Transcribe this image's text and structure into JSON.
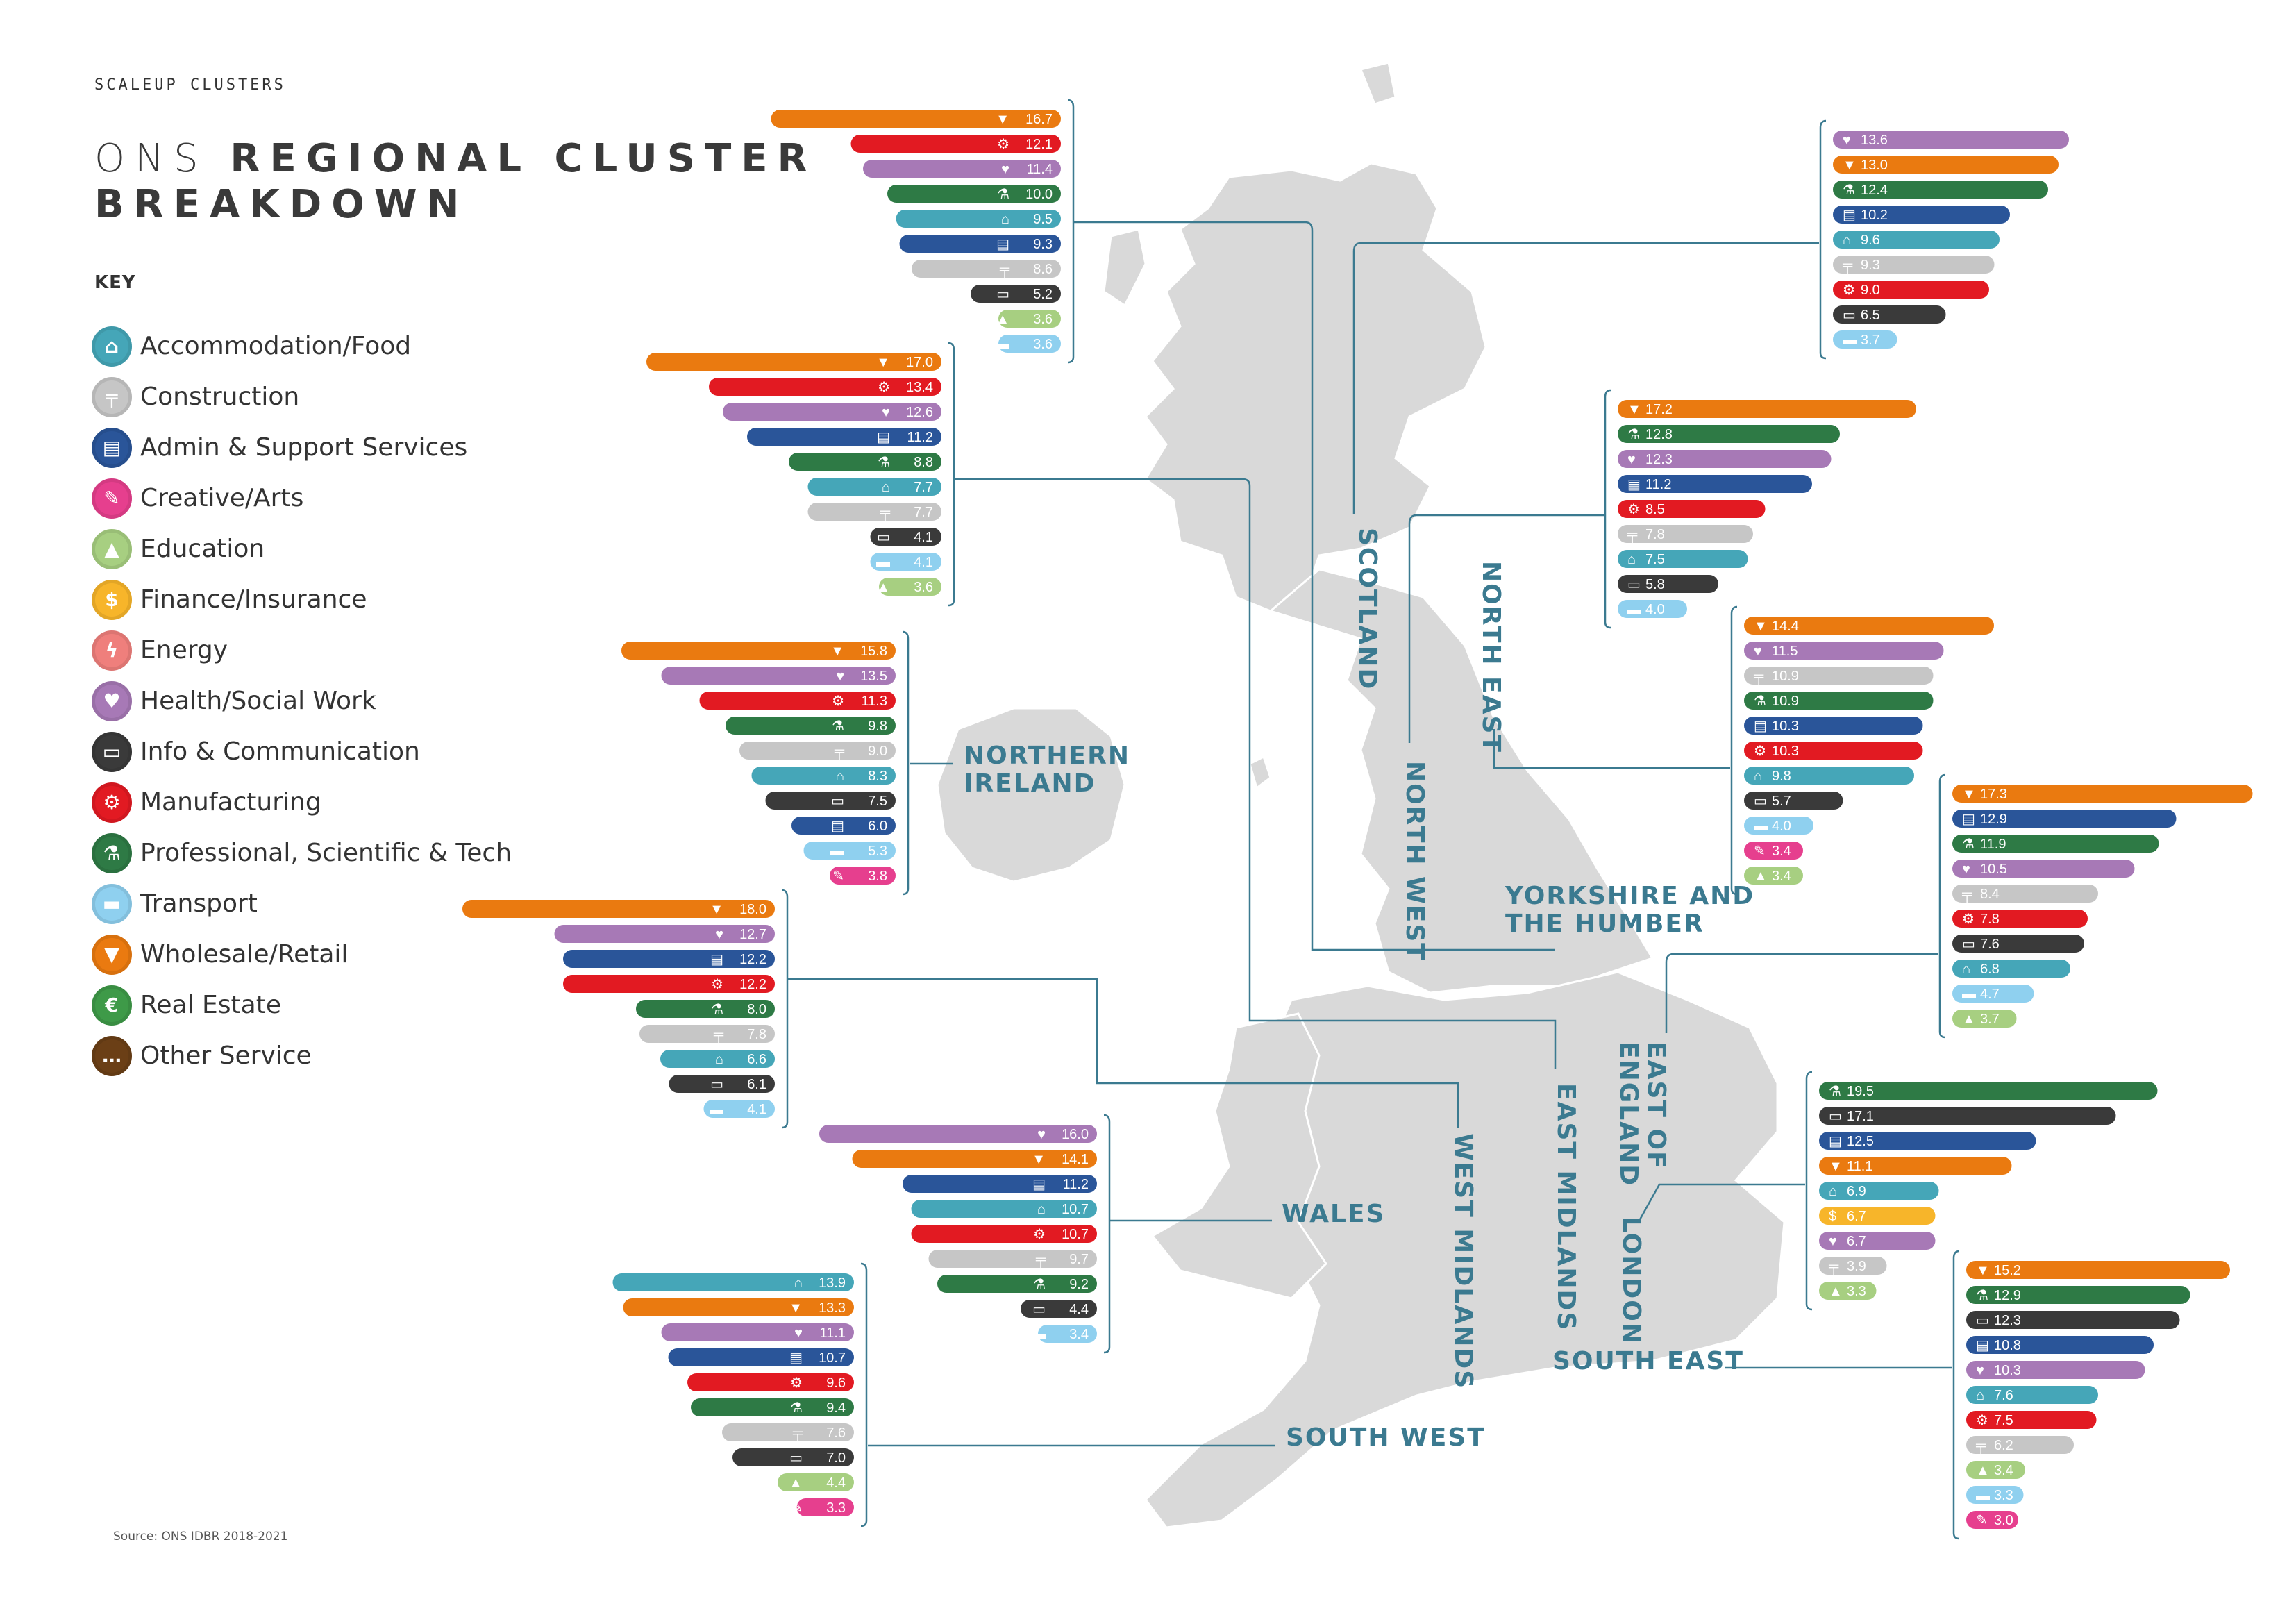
{
  "header": {
    "kicker": "SCALEUP CLUSTERS",
    "title_light": "ONS",
    "title_bold_1": "REGIONAL CLUSTER",
    "title_bold_2": "BREAKDOWN"
  },
  "key": {
    "heading": "KEY",
    "items": [
      {
        "label": "Accommodation/Food",
        "color": "#45a6b8",
        "icon": "bed-icon",
        "glyph": "⌂"
      },
      {
        "label": "Construction",
        "color": "#c6c6c6",
        "icon": "crane-icon",
        "glyph": "╤"
      },
      {
        "label": "Admin & Support Services",
        "color": "#2a5599",
        "icon": "folder-icon",
        "glyph": "▤"
      },
      {
        "label": "Creative/Arts",
        "color": "#e63f8e",
        "icon": "lightbulb-icon",
        "glyph": "✎"
      },
      {
        "label": "Education",
        "color": "#a7cf81",
        "icon": "mortarboard-icon",
        "glyph": "▲"
      },
      {
        "label": "Finance/Insurance",
        "color": "#f7b52a",
        "icon": "coins-icon",
        "glyph": "$"
      },
      {
        "label": "Energy",
        "color": "#ef7f7c",
        "icon": "lightning-icon",
        "glyph": "ϟ"
      },
      {
        "label": "Health/Social Work",
        "color": "#a779b6",
        "icon": "heart-hand-icon",
        "glyph": "♥"
      },
      {
        "label": "Info & Communication",
        "color": "#3a3a3a",
        "icon": "chat-icon",
        "glyph": "▭"
      },
      {
        "label": "Manufacturing",
        "color": "#e21a22",
        "icon": "factory-icon",
        "glyph": "⚙"
      },
      {
        "label": "Professional, Scientific & Tech",
        "color": "#2e7a45",
        "icon": "microscope-icon",
        "glyph": "⚗"
      },
      {
        "label": "Transport",
        "color": "#8fd0ef",
        "icon": "bus-icon",
        "glyph": "▬"
      },
      {
        "label": "Wholesale/Retail",
        "color": "#ea7a10",
        "icon": "basket-icon",
        "glyph": "▼"
      },
      {
        "label": "Real Estate",
        "color": "#3e9a48",
        "icon": "house-icon",
        "glyph": "€"
      },
      {
        "label": "Other Service",
        "color": "#6b3f16",
        "icon": "ellipsis-icon",
        "glyph": "…"
      }
    ]
  },
  "source": "Source: ONS IDBR 2018-2021",
  "colors": {
    "Accommodation/Food": "#45a6b8",
    "Construction": "#c6c6c6",
    "Admin & Support Services": "#2a5599",
    "Creative/Arts": "#e63f8e",
    "Education": "#a7cf81",
    "Finance/Insurance": "#f7b52a",
    "Energy": "#ef7f7c",
    "Health/Social Work": "#a779b6",
    "Info & Communication": "#3a3a3a",
    "Manufacturing": "#e21a22",
    "Professional, Scientific & Tech": "#2e7a45",
    "Transport": "#8fd0ef",
    "Wholesale/Retail": "#ea7a10",
    "Real Estate": "#3e9a48",
    "Other Service": "#6b3f16"
  },
  "region_labels": [
    {
      "text": "SCOTLAND"
    },
    {
      "text": "NORTH EAST"
    },
    {
      "text": "NORTH WEST"
    },
    {
      "text": "NORTHERN IRELAND"
    },
    {
      "text": "YORKSHIRE AND THE HUMBER"
    },
    {
      "text": "EAST OF ENGLAND"
    },
    {
      "text": "EAST MIDLANDS"
    },
    {
      "text": "WEST MIDLANDS"
    },
    {
      "text": "LONDON"
    },
    {
      "text": "WALES"
    },
    {
      "text": "SOUTH EAST"
    },
    {
      "text": "SOUTH WEST"
    }
  ],
  "chart_data": {
    "type": "bar",
    "title": "ONS REGIONAL CLUSTER BREAKDOWN",
    "orientation": "horizontal",
    "regions": [
      {
        "name": "",
        "series": [
          {
            "name": "Wholesale/Retail",
            "value": 16.7
          },
          {
            "name": "Manufacturing",
            "value": 12.1
          },
          {
            "name": "Health/Social Work",
            "value": 11.4
          },
          {
            "name": "Professional, Scientific & Tech",
            "value": 10.0
          },
          {
            "name": "Accommodation/Food",
            "value": 9.5
          },
          {
            "name": "Admin & Support Services",
            "value": 9.3
          },
          {
            "name": "Construction",
            "value": 8.6
          },
          {
            "name": "Info & Communication",
            "value": 5.2
          },
          {
            "name": "Education",
            "value": 3.6
          },
          {
            "name": "Transport",
            "value": 3.6
          }
        ]
      },
      {
        "name": "",
        "series": [
          {
            "name": "Wholesale/Retail",
            "value": 17.0
          },
          {
            "name": "Manufacturing",
            "value": 13.4
          },
          {
            "name": "Health/Social Work",
            "value": 12.6
          },
          {
            "name": "Admin & Support Services",
            "value": 11.2
          },
          {
            "name": "Professional, Scientific & Tech",
            "value": 8.8
          },
          {
            "name": "Accommodation/Food",
            "value": 7.7
          },
          {
            "name": "Construction",
            "value": 7.7
          },
          {
            "name": "Info & Communication",
            "value": 4.1
          },
          {
            "name": "Transport",
            "value": 4.1
          },
          {
            "name": "Education",
            "value": 3.6
          }
        ]
      },
      {
        "name": "NORTHERN IRELAND",
        "series": [
          {
            "name": "Wholesale/Retail",
            "value": 15.8
          },
          {
            "name": "Health/Social Work",
            "value": 13.5
          },
          {
            "name": "Manufacturing",
            "value": 11.3
          },
          {
            "name": "Professional, Scientific & Tech",
            "value": 9.8
          },
          {
            "name": "Construction",
            "value": 9.0
          },
          {
            "name": "Accommodation/Food",
            "value": 8.3
          },
          {
            "name": "Info & Communication",
            "value": 7.5
          },
          {
            "name": "Admin & Support Services",
            "value": 6.0
          },
          {
            "name": "Transport",
            "value": 5.3
          },
          {
            "name": "Creative/Arts",
            "value": 3.8
          }
        ]
      },
      {
        "name": "",
        "series": [
          {
            "name": "Wholesale/Retail",
            "value": 18.0
          },
          {
            "name": "Health/Social Work",
            "value": 12.7
          },
          {
            "name": "Admin & Support Services",
            "value": 12.2
          },
          {
            "name": "Manufacturing",
            "value": 12.2
          },
          {
            "name": "Professional, Scientific & Tech",
            "value": 8.0
          },
          {
            "name": "Construction",
            "value": 7.8
          },
          {
            "name": "Accommodation/Food",
            "value": 6.6
          },
          {
            "name": "Info & Communication",
            "value": 6.1
          },
          {
            "name": "Transport",
            "value": 4.1
          }
        ]
      },
      {
        "name": "WALES",
        "series": [
          {
            "name": "Health/Social Work",
            "value": 16.0
          },
          {
            "name": "Wholesale/Retail",
            "value": 14.1
          },
          {
            "name": "Admin & Support Services",
            "value": 11.2
          },
          {
            "name": "Accommodation/Food",
            "value": 10.7
          },
          {
            "name": "Manufacturing",
            "value": 10.7
          },
          {
            "name": "Construction",
            "value": 9.7
          },
          {
            "name": "Professional, Scientific & Tech",
            "value": 9.2
          },
          {
            "name": "Info & Communication",
            "value": 4.4
          },
          {
            "name": "Transport",
            "value": 3.4
          }
        ]
      },
      {
        "name": "SOUTH WEST",
        "series": [
          {
            "name": "Accommodation/Food",
            "value": 13.9
          },
          {
            "name": "Wholesale/Retail",
            "value": 13.3
          },
          {
            "name": "Health/Social Work",
            "value": 11.1
          },
          {
            "name": "Admin & Support Services",
            "value": 10.7
          },
          {
            "name": "Manufacturing",
            "value": 9.6
          },
          {
            "name": "Professional, Scientific & Tech",
            "value": 9.4
          },
          {
            "name": "Construction",
            "value": 7.6
          },
          {
            "name": "Info & Communication",
            "value": 7.0
          },
          {
            "name": "Education",
            "value": 4.4
          },
          {
            "name": "Creative/Arts",
            "value": 3.3
          }
        ]
      },
      {
        "name": "SCOTLAND",
        "series": [
          {
            "name": "Health/Social Work",
            "value": 13.6
          },
          {
            "name": "Wholesale/Retail",
            "value": 13.0
          },
          {
            "name": "Professional, Scientific & Tech",
            "value": 12.4
          },
          {
            "name": "Admin & Support Services",
            "value": 10.2
          },
          {
            "name": "Accommodation/Food",
            "value": 9.6
          },
          {
            "name": "Construction",
            "value": 9.3
          },
          {
            "name": "Manufacturing",
            "value": 9.0
          },
          {
            "name": "Info & Communication",
            "value": 6.5
          },
          {
            "name": "Transport",
            "value": 3.7
          }
        ]
      },
      {
        "name": "NORTH WEST",
        "series": [
          {
            "name": "Wholesale/Retail",
            "value": 17.2
          },
          {
            "name": "Professional, Scientific & Tech",
            "value": 12.8
          },
          {
            "name": "Health/Social Work",
            "value": 12.3
          },
          {
            "name": "Admin & Support Services",
            "value": 11.2
          },
          {
            "name": "Manufacturing",
            "value": 8.5
          },
          {
            "name": "Construction",
            "value": 7.8
          },
          {
            "name": "Accommodation/Food",
            "value": 7.5
          },
          {
            "name": "Info & Communication",
            "value": 5.8
          },
          {
            "name": "Transport",
            "value": 4.0
          }
        ]
      },
      {
        "name": "NORTH EAST",
        "series": [
          {
            "name": "Wholesale/Retail",
            "value": 14.4
          },
          {
            "name": "Health/Social Work",
            "value": 11.5
          },
          {
            "name": "Construction",
            "value": 10.9
          },
          {
            "name": "Professional, Scientific & Tech",
            "value": 10.9
          },
          {
            "name": "Admin & Support Services",
            "value": 10.3
          },
          {
            "name": "Manufacturing",
            "value": 10.3
          },
          {
            "name": "Accommodation/Food",
            "value": 9.8
          },
          {
            "name": "Info & Communication",
            "value": 5.7
          },
          {
            "name": "Transport",
            "value": 4.0
          },
          {
            "name": "Creative/Arts",
            "value": 3.4
          },
          {
            "name": "Education",
            "value": 3.4
          }
        ]
      },
      {
        "name": "YORKSHIRE AND THE HUMBER",
        "series": [
          {
            "name": "Wholesale/Retail",
            "value": 17.3
          },
          {
            "name": "Admin & Support Services",
            "value": 12.9
          },
          {
            "name": "Professional, Scientific & Tech",
            "value": 11.9
          },
          {
            "name": "Health/Social Work",
            "value": 10.5
          },
          {
            "name": "Construction",
            "value": 8.4
          },
          {
            "name": "Manufacturing",
            "value": 7.8
          },
          {
            "name": "Info & Communication",
            "value": 7.6
          },
          {
            "name": "Accommodation/Food",
            "value": 6.8
          },
          {
            "name": "Transport",
            "value": 4.7
          },
          {
            "name": "Education",
            "value": 3.7
          }
        ]
      },
      {
        "name": "LONDON",
        "series": [
          {
            "name": "Professional, Scientific & Tech",
            "value": 19.5
          },
          {
            "name": "Info & Communication",
            "value": 17.1
          },
          {
            "name": "Admin & Support Services",
            "value": 12.5
          },
          {
            "name": "Wholesale/Retail",
            "value": 11.1
          },
          {
            "name": "Accommodation/Food",
            "value": 6.9
          },
          {
            "name": "Finance/Insurance",
            "value": 6.7
          },
          {
            "name": "Health/Social Work",
            "value": 6.7
          },
          {
            "name": "Construction",
            "value": 3.9
          },
          {
            "name": "Education",
            "value": 3.3
          }
        ]
      },
      {
        "name": "SOUTH EAST",
        "series": [
          {
            "name": "Wholesale/Retail",
            "value": 15.2
          },
          {
            "name": "Professional, Scientific & Tech",
            "value": 12.9
          },
          {
            "name": "Info & Communication",
            "value": 12.3
          },
          {
            "name": "Admin & Support Services",
            "value": 10.8
          },
          {
            "name": "Health/Social Work",
            "value": 10.3
          },
          {
            "name": "Accommodation/Food",
            "value": 7.6
          },
          {
            "name": "Manufacturing",
            "value": 7.5
          },
          {
            "name": "Construction",
            "value": 6.2
          },
          {
            "name": "Education",
            "value": 3.4
          },
          {
            "name": "Transport",
            "value": 3.3
          },
          {
            "name": "Creative/Arts",
            "value": 3.0
          }
        ]
      }
    ]
  }
}
